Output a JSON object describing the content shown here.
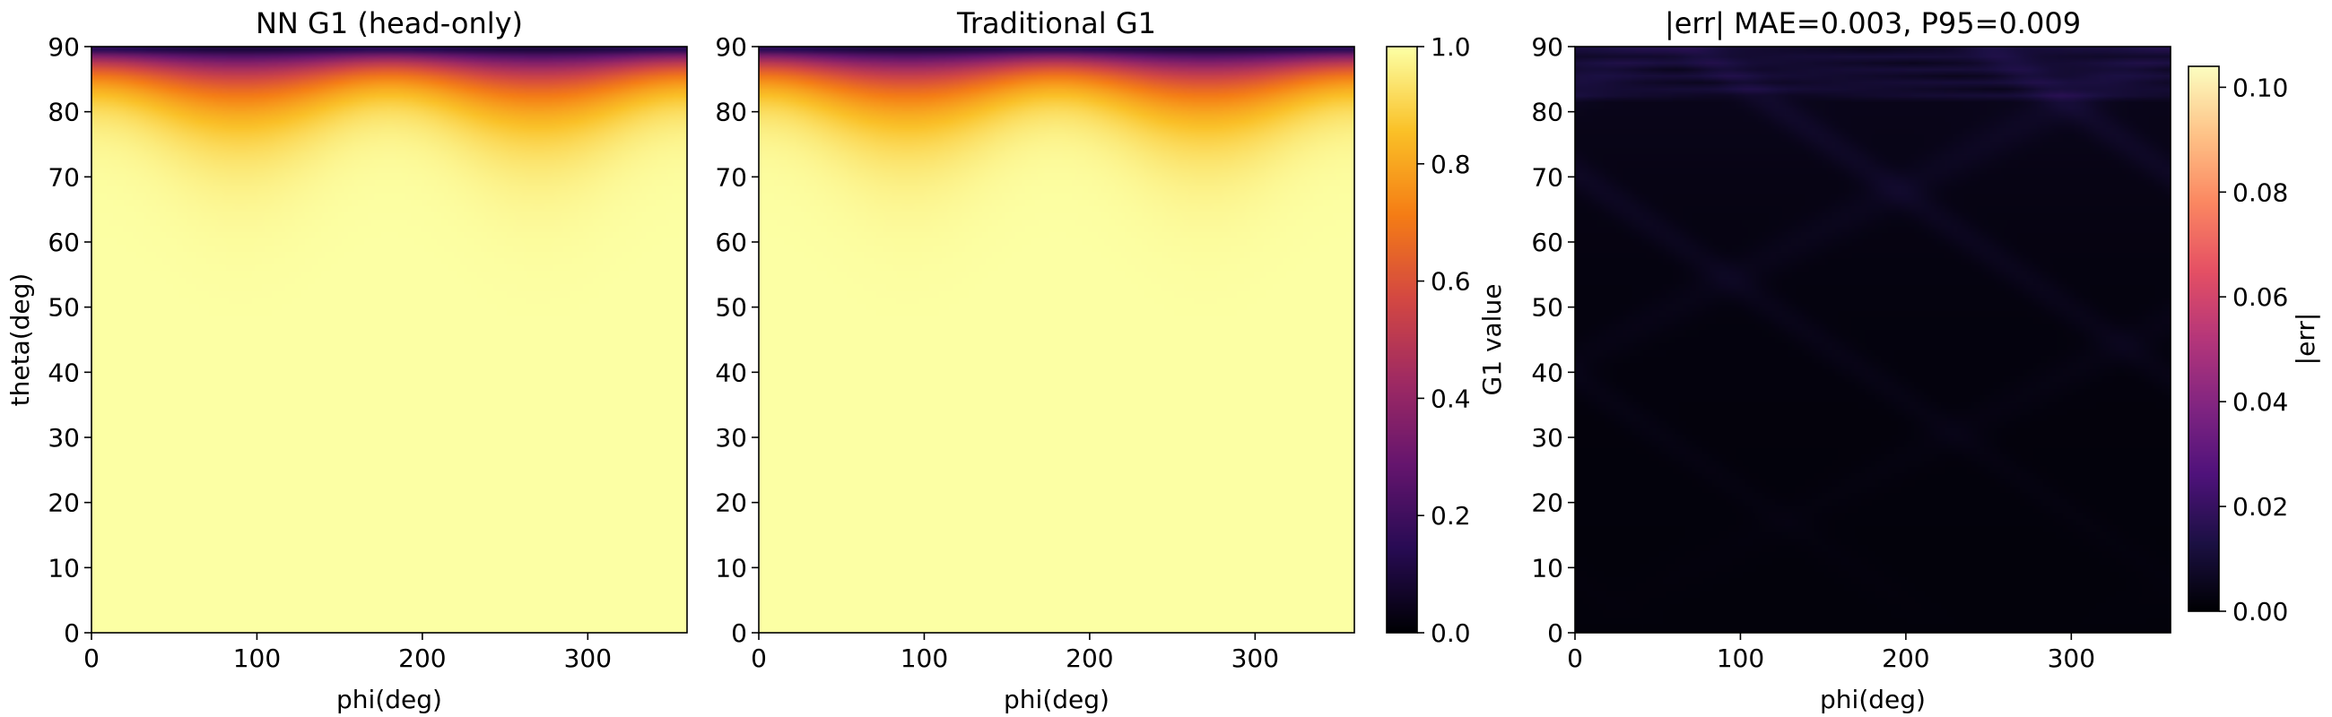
{
  "chart_data": [
    {
      "type": "heatmap",
      "title": "NN G1 (head-only)",
      "xlabel": "phi(deg)",
      "ylabel": "theta(deg)",
      "xlim": [
        0,
        360
      ],
      "ylim": [
        0,
        90
      ],
      "xticks": [
        0,
        100,
        200,
        300
      ],
      "yticks": [
        0,
        10,
        20,
        30,
        40,
        50,
        60,
        70,
        80,
        90
      ],
      "colormap": "inferno",
      "value_range": [
        0.0,
        1.0
      ],
      "model": "G1 masking value over phi/theta: ~1.0 for theta < 30, decreasing toward 0 at theta = 90; dips strongest (lowest values) near phi = 90 and phi = 270, ridges near phi = 0, 180, 360"
    },
    {
      "type": "heatmap",
      "title": "Traditional G1",
      "xlabel": "phi(deg)",
      "ylabel": "",
      "xlim": [
        0,
        360
      ],
      "ylim": [
        0,
        90
      ],
      "xticks": [
        0,
        100,
        200,
        300
      ],
      "yticks": [
        0,
        10,
        20,
        30,
        40,
        50,
        60,
        70,
        80,
        90
      ],
      "colormap": "inferno",
      "value_range": [
        0.0,
        1.0
      ],
      "colorbar": {
        "label": "G1 value",
        "range": [
          0.0,
          1.0
        ],
        "ticks": [
          "0.0",
          "0.2",
          "0.4",
          "0.6",
          "0.8",
          "1.0"
        ]
      }
    },
    {
      "type": "heatmap",
      "title": "|err|  MAE=0.003, P95=0.009",
      "xlabel": "phi(deg)",
      "ylabel": "",
      "xlim": [
        0,
        360
      ],
      "ylim": [
        0,
        90
      ],
      "xticks": [
        0,
        100,
        200,
        300
      ],
      "yticks": [
        0,
        10,
        20,
        30,
        40,
        50,
        60,
        70,
        80,
        90
      ],
      "colormap": "magma",
      "value_range": [
        0.0,
        0.104
      ],
      "mae": 0.003,
      "p95": 0.009,
      "colorbar": {
        "label": "|err|",
        "range": [
          0.0,
          0.104
        ],
        "ticks": [
          "0.00",
          "0.02",
          "0.04",
          "0.06",
          "0.08",
          "0.10"
        ]
      }
    }
  ]
}
